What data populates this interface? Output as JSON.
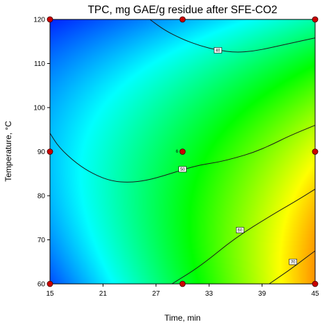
{
  "chart_data": {
    "type": "heatmap",
    "title": "TPC, mg GAE/g residue after SFE-CO2",
    "xlabel": "Time, min",
    "ylabel": "Temperature, °C",
    "xlim": [
      15,
      45
    ],
    "ylim": [
      60,
      120
    ],
    "x_ticks": [
      "15",
      "21",
      "27",
      "33",
      "39",
      "45"
    ],
    "y_ticks": [
      "60",
      "70",
      "80",
      "90",
      "100",
      "110",
      "120"
    ],
    "colormap": [
      "#0000ff",
      "#00ffff",
      "#00ff00",
      "#ffff00",
      "#ff0000"
    ],
    "value_range": [
      35,
      72
    ],
    "contours": [
      {
        "label": "40",
        "points": [
          [
            26.3,
            120
          ],
          [
            28,
            117.5
          ],
          [
            30,
            115.5
          ],
          [
            32,
            114
          ],
          [
            34,
            113
          ],
          [
            36,
            112.5
          ],
          [
            38,
            112.8
          ],
          [
            40,
            113.6
          ],
          [
            42,
            114.5
          ],
          [
            45,
            115.8
          ]
        ],
        "label_at": [
          34,
          113
        ]
      },
      {
        "label": "50",
        "points": [
          [
            15,
            94.2
          ],
          [
            16,
            91
          ],
          [
            18,
            87.3
          ],
          [
            20,
            84.8
          ],
          [
            22,
            83.3
          ],
          [
            24,
            83
          ],
          [
            26,
            83.5
          ],
          [
            28,
            84.6
          ],
          [
            30,
            85.9
          ],
          [
            32,
            87
          ],
          [
            34,
            87.6
          ],
          [
            36,
            88.6
          ],
          [
            38,
            89.8
          ],
          [
            40,
            91.5
          ],
          [
            42,
            93.5
          ],
          [
            45,
            96
          ]
        ],
        "label_at": [
          30,
          86
        ]
      },
      {
        "label": "60",
        "points": [
          [
            28.8,
            60
          ],
          [
            32,
            64
          ],
          [
            36,
            70.5
          ],
          [
            40,
            75.5
          ],
          [
            43,
            79
          ],
          [
            45,
            81.5
          ]
        ],
        "label_at": [
          36.5,
          72.2
        ]
      },
      {
        "label": "70",
        "points": [
          [
            39.8,
            60
          ],
          [
            42,
            63
          ],
          [
            44,
            66
          ],
          [
            45,
            67.5
          ]
        ],
        "label_at": [
          42.5,
          65
        ]
      }
    ],
    "design_points": [
      {
        "x": 15,
        "y": 60
      },
      {
        "x": 30,
        "y": 60
      },
      {
        "x": 45,
        "y": 60
      },
      {
        "x": 15,
        "y": 90
      },
      {
        "x": 30,
        "y": 90
      },
      {
        "x": 45,
        "y": 90
      },
      {
        "x": 15,
        "y": 120
      },
      {
        "x": 30,
        "y": 120
      },
      {
        "x": 45,
        "y": 120
      }
    ],
    "center_point_count": "6"
  }
}
